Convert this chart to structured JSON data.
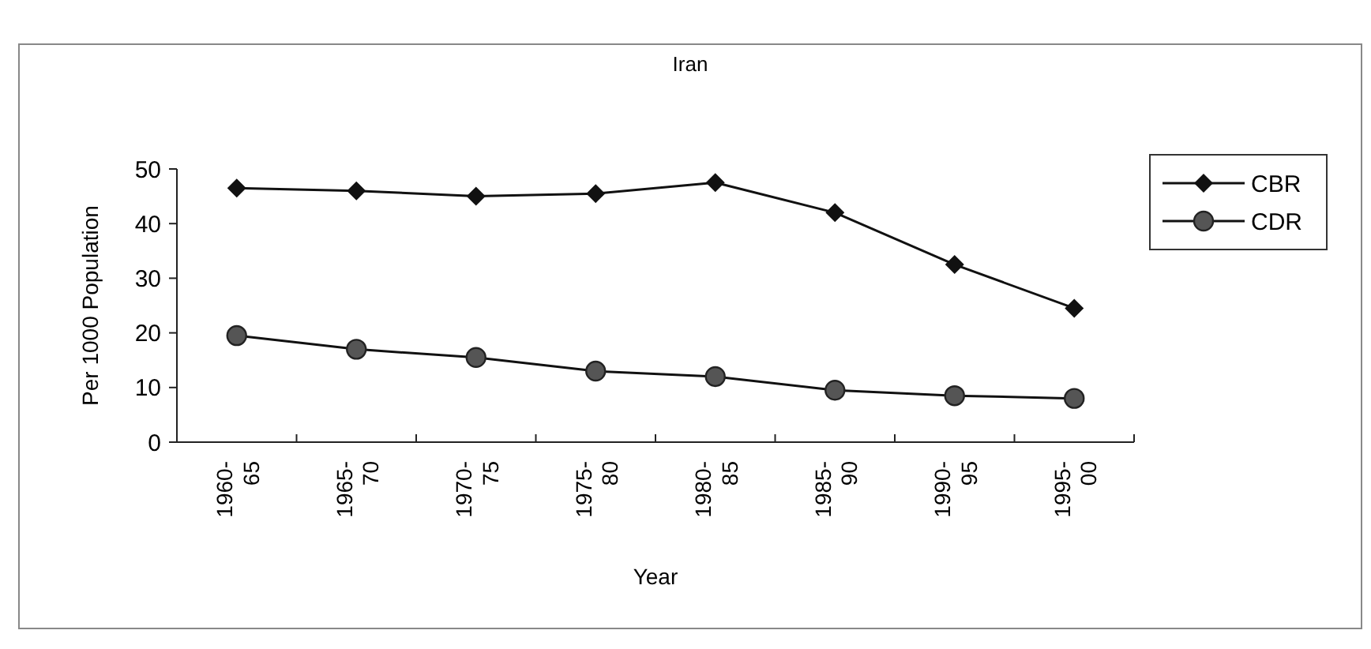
{
  "chart_data": {
    "type": "line",
    "title": "Iran",
    "xlabel": "Year",
    "ylabel": "Per 1000 Population",
    "categories": [
      "1960-\n65",
      "1965-\n70",
      "1970-\n75",
      "1975-\n80",
      "1980-\n85",
      "1985-\n90",
      "1990-\n95",
      "1995-\n00"
    ],
    "series": [
      {
        "name": "CBR",
        "color": "#111111",
        "marker": "diamond",
        "values": [
          46.5,
          46,
          45,
          45.5,
          47.5,
          42,
          32.5,
          24.5
        ]
      },
      {
        "name": "CDR",
        "color": "#555555",
        "marker": "circle",
        "values": [
          19.5,
          17,
          15.5,
          13,
          12,
          9.5,
          8.5,
          8
        ]
      }
    ],
    "ylim": [
      0,
      50
    ],
    "yticks": [
      0,
      10,
      20,
      30,
      40,
      50
    ],
    "grid": false,
    "legend": "top right"
  }
}
